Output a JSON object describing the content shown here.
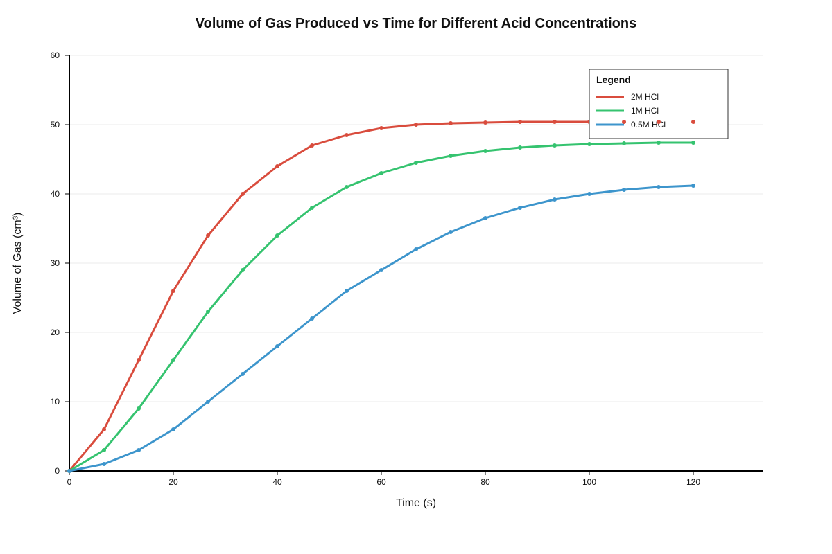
{
  "chart_data": {
    "type": "line",
    "title": "Volume of Gas Produced vs Time for Different Acid Concentrations",
    "xlabel": "Time (s)",
    "ylabel": "Volume of Gas (cm³)",
    "xlim": [
      0,
      133.33
    ],
    "ylim": [
      0,
      60
    ],
    "xticks": [
      0,
      20,
      40,
      60,
      80,
      100,
      120
    ],
    "yticks": [
      0,
      10,
      20,
      30,
      40,
      50,
      60
    ],
    "grid": true,
    "legend": {
      "title": "Legend",
      "placement": "top-right"
    },
    "x": [
      0,
      6.67,
      13.33,
      20,
      26.67,
      33.33,
      40,
      46.67,
      53.33,
      60,
      66.67,
      73.33,
      80,
      86.67,
      93.33,
      100,
      106.67,
      113.33,
      120
    ],
    "series": [
      {
        "name": "2M HCl",
        "color": "#d94c3d",
        "values": [
          0,
          6,
          16,
          26,
          34,
          40,
          44,
          47,
          48.5,
          49.5,
          50,
          50.2,
          50.3,
          50.4,
          50.4,
          50.4,
          50.4,
          50.4,
          50.4
        ]
      },
      {
        "name": "1M HCl",
        "color": "#35c36f",
        "values": [
          0,
          3,
          9,
          16,
          23,
          29,
          34,
          38,
          41,
          43,
          44.5,
          45.5,
          46.2,
          46.7,
          47,
          47.2,
          47.3,
          47.4,
          47.4
        ]
      },
      {
        "name": "0.5M HCl",
        "color": "#3d95cc",
        "values": [
          0,
          1,
          3,
          6,
          10,
          14,
          18,
          22,
          26,
          29,
          32,
          34.5,
          36.5,
          38,
          39.2,
          40,
          40.6,
          41,
          41.2
        ]
      }
    ]
  }
}
